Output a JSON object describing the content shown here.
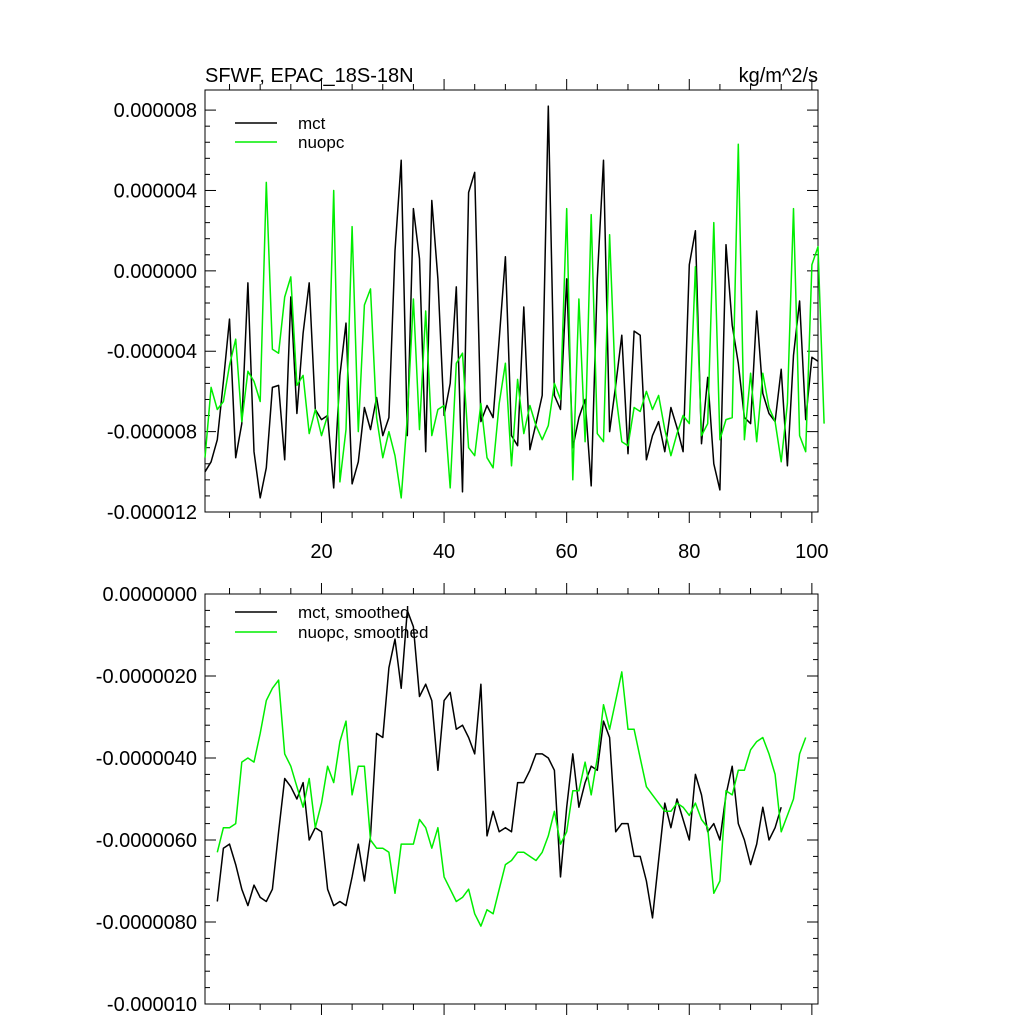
{
  "chart_data": [
    {
      "type": "line",
      "title": "SFWF, EPAC_18S-18N",
      "units": "kg/m^2/s",
      "xlim": [
        1,
        101
      ],
      "ylim": [
        -1.2e-05,
        9e-06
      ],
      "x_tick_values": [
        20,
        40,
        60,
        80,
        100
      ],
      "x_tick_labels": [
        "20",
        "40",
        "60",
        "80",
        "100"
      ],
      "y_tick_values": [
        -1.2e-05,
        -8e-06,
        -4e-06,
        0.0,
        4e-06,
        8e-06
      ],
      "y_tick_labels": [
        "-0.000012",
        "-0.000008",
        "-0.000004",
        "0.000000",
        "0.000004",
        "0.000008"
      ],
      "x_start": 1,
      "series": [
        {
          "name": "mct",
          "color": "#000000",
          "values": [
            -1e-05,
            -9.5e-06,
            -8.4e-06,
            -5.5e-06,
            -2.4e-06,
            -9.3e-06,
            -7.6e-06,
            -6e-07,
            -9e-06,
            -1.13e-05,
            -9.8e-06,
            -5.8e-06,
            -5.7e-06,
            -9.4e-06,
            -1.3e-06,
            -7.1e-06,
            -3.1e-06,
            -6e-07,
            -6.9e-06,
            -7.4e-06,
            -7.2e-06,
            -1.08e-05,
            -5.2e-06,
            -2.6e-06,
            -1.06e-05,
            -9.5e-06,
            -6.8e-06,
            -7.9e-06,
            -6.3e-06,
            -8.2e-06,
            -7.3e-06,
            1e-06,
            5.5e-06,
            -8.2e-06,
            3.1e-06,
            6e-07,
            -9e-06,
            3.5e-06,
            -4e-07,
            -7.2e-06,
            -5.6e-06,
            -8e-07,
            -1.1e-05,
            3.9e-06,
            4.9e-06,
            -7.5e-06,
            -6.7e-06,
            -7.3e-06,
            -3.4e-06,
            7e-07,
            -8.2e-06,
            -8.7e-06,
            -1.8e-06,
            -8.9e-06,
            -7.6e-06,
            -6.2e-06,
            8.2e-06,
            -6.2e-06,
            -6.9e-06,
            -4e-07,
            -8.8e-06,
            -7.3e-06,
            -6.4e-06,
            -1.07e-05,
            -4e-07,
            5.5e-06,
            -8e-06,
            -5.7e-06,
            -3.2e-06,
            -9.1e-06,
            -3e-06,
            -3.2e-06,
            -9.4e-06,
            -8.2e-06,
            -7.5e-06,
            -9e-06,
            -6.8e-06,
            -7.8e-06,
            -9e-06,
            3e-07,
            2e-06,
            -8.6e-06,
            -5.3e-06,
            -9.6e-06,
            -1.09e-05,
            1.3e-06,
            -2.7e-06,
            -4.6e-06,
            -7.3e-06,
            -7.6e-06,
            -2e-06,
            -6.1e-06,
            -7.1e-06,
            -7.5e-06,
            -4.9e-06,
            -9.7e-06,
            -4.2e-06,
            -1.5e-06,
            -7.4e-06,
            -4.3e-06,
            -4.5e-06
          ]
        },
        {
          "name": "nuopc",
          "color": "#00ee00",
          "values": [
            -9.3e-06,
            -5.8e-06,
            -6.9e-06,
            -6.5e-06,
            -4.7e-06,
            -3.4e-06,
            -7.5e-06,
            -5e-06,
            -5.5e-06,
            -6.5e-06,
            4.4e-06,
            -3.9e-06,
            -4.1e-06,
            -1.3e-06,
            -3e-07,
            -5.7e-06,
            -5.2e-06,
            -8.1e-06,
            -6.9e-06,
            -8.2e-06,
            -7.2e-06,
            4e-06,
            -1.05e-05,
            -7.9e-06,
            2.2e-06,
            -8e-06,
            -1.7e-06,
            -9e-07,
            -7.3e-06,
            -9.3e-06,
            -8e-06,
            -9.2e-06,
            -1.13e-05,
            -7.3e-06,
            -1.4e-06,
            -7.9e-06,
            -2e-06,
            -8.2e-06,
            -6.9e-06,
            -6.7e-06,
            -1.08e-05,
            -4.6e-06,
            -4.1e-06,
            -8.8e-06,
            -9.2e-06,
            -6.6e-06,
            -9.3e-06,
            -9.8e-06,
            -6.6e-06,
            -4.6e-06,
            -9.7e-06,
            -5.4e-06,
            -8.1e-06,
            -6.7e-06,
            -7.7e-06,
            -8.4e-06,
            -7.7e-06,
            -5.6e-06,
            -6.4e-06,
            3.1e-06,
            -1.04e-05,
            -1.4e-06,
            -8.5e-06,
            2.8e-06,
            -8.1e-06,
            -8.5e-06,
            1.8e-06,
            -6.1e-06,
            -8.5e-06,
            -8.7e-06,
            -6.8e-06,
            -7e-06,
            -6e-06,
            -6.9e-06,
            -6.2e-06,
            -7.9e-06,
            -9.2e-06,
            -8.1e-06,
            -7.2e-06,
            -7.6e-06,
            2e-07,
            -8.2e-06,
            -7.6e-06,
            2.4e-06,
            -8.4e-06,
            -7.4e-06,
            -7.3e-06,
            6.3e-06,
            -8.4e-06,
            -5.1e-06,
            -8.5e-06,
            -5.1e-06,
            -6.8e-06,
            -7.5e-06,
            -9.5e-06,
            -6.6e-06,
            3.1e-06,
            -8.2e-06,
            -9e-06,
            3e-07,
            1.2e-06,
            -7.6e-06
          ]
        }
      ]
    },
    {
      "type": "line",
      "title": "",
      "units": "",
      "xlim": [
        1,
        101
      ],
      "ylim": [
        -1e-05,
        0.0
      ],
      "x_tick_values": [
        20,
        40,
        60,
        80,
        100
      ],
      "x_tick_labels": [
        "",
        "",
        "",
        "",
        ""
      ],
      "y_tick_values": [
        -1e-05,
        -8e-06,
        -6e-06,
        -4e-06,
        -2e-06,
        0.0
      ],
      "y_tick_labels": [
        "-0.000010",
        "-0.0000080",
        "-0.0000060",
        "-0.0000040",
        "-0.0000020",
        "0.0000000"
      ],
      "x_start": 3,
      "series": [
        {
          "name": "mct, smoothed",
          "color": "#000000",
          "values": [
            -7.5e-06,
            -6.2e-06,
            -6.1e-06,
            -6.6e-06,
            -7.2e-06,
            -7.6e-06,
            -7.1e-06,
            -7.4e-06,
            -7.5e-06,
            -7.2e-06,
            -5.8e-06,
            -4.5e-06,
            -4.7e-06,
            -5e-06,
            -4.6e-06,
            -6e-06,
            -5.7e-06,
            -5.8e-06,
            -7.2e-06,
            -7.6e-06,
            -7.5e-06,
            -7.6e-06,
            -6.9e-06,
            -6.1e-06,
            -7e-06,
            -5.9e-06,
            -3.4e-06,
            -3.5e-06,
            -1.8e-06,
            -1.1e-06,
            -2.3e-06,
            -4e-07,
            -8e-07,
            -2.5e-06,
            -2.2e-06,
            -2.6e-06,
            -4.3e-06,
            -2.6e-06,
            -2.4e-06,
            -3.3e-06,
            -3.2e-06,
            -3.5e-06,
            -3.9e-06,
            -2.2e-06,
            -5.9e-06,
            -5.3e-06,
            -5.8e-06,
            -5.7e-06,
            -5.8e-06,
            -4.6e-06,
            -4.6e-06,
            -4.3e-06,
            -3.9e-06,
            -3.9e-06,
            -4e-06,
            -4.3e-06,
            -6.9e-06,
            -5.2e-06,
            -3.9e-06,
            -5.2e-06,
            -4.6e-06,
            -4.2e-06,
            -4.3e-06,
            -3.1e-06,
            -3.5e-06,
            -5.8e-06,
            -5.6e-06,
            -5.6e-06,
            -6.4e-06,
            -6.4e-06,
            -7e-06,
            -7.9e-06,
            -6.5e-06,
            -5.1e-06,
            -5.7e-06,
            -5e-06,
            -5.5e-06,
            -6e-06,
            -4.4e-06,
            -4.9e-06,
            -5.8e-06,
            -5.6e-06,
            -6e-06,
            -4.9e-06,
            -4.2e-06,
            -5.6e-06,
            -6e-06,
            -6.6e-06,
            -6.1e-06,
            -5.2e-06,
            -6e-06,
            -5.7e-06,
            -5.2e-06
          ]
        },
        {
          "name": "nuopc, smoothed",
          "color": "#00ee00",
          "values": [
            -6.3e-06,
            -5.7e-06,
            -5.7e-06,
            -5.6e-06,
            -4.1e-06,
            -4e-06,
            -4.1e-06,
            -3.4e-06,
            -2.6e-06,
            -2.3e-06,
            -2.1e-06,
            -3.9e-06,
            -4.2e-06,
            -4.7e-06,
            -5.2e-06,
            -4.5e-06,
            -5.7e-06,
            -5.1e-06,
            -4.2e-06,
            -4.6e-06,
            -3.6e-06,
            -3.1e-06,
            -4.9e-06,
            -4.2e-06,
            -4.2e-06,
            -6e-06,
            -6.2e-06,
            -6.2e-06,
            -6.3e-06,
            -7.3e-06,
            -6.1e-06,
            -6.1e-06,
            -6.1e-06,
            -5.5e-06,
            -5.7e-06,
            -6.2e-06,
            -5.7e-06,
            -6.9e-06,
            -7.2e-06,
            -7.5e-06,
            -7.4e-06,
            -7.2e-06,
            -7.8e-06,
            -8.1e-06,
            -7.7e-06,
            -7.8e-06,
            -7.2e-06,
            -6.6e-06,
            -6.5e-06,
            -6.3e-06,
            -6.3e-06,
            -6.4e-06,
            -6.5e-06,
            -6.3e-06,
            -5.9e-06,
            -5.3e-06,
            -6.1e-06,
            -5.8e-06,
            -4.8e-06,
            -4.8e-06,
            -4.1e-06,
            -4.9e-06,
            -4e-06,
            -2.7e-06,
            -3.3e-06,
            -2.6e-06,
            -1.9e-06,
            -3.3e-06,
            -3.3e-06,
            -4e-06,
            -4.7e-06,
            -4.9e-06,
            -5.1e-06,
            -5.3e-06,
            -5.3e-06,
            -5.1e-06,
            -5.2e-06,
            -5.4e-06,
            -5.1e-06,
            -5.5e-06,
            -5.7e-06,
            -7.3e-06,
            -7e-06,
            -4.8e-06,
            -4.9e-06,
            -4.3e-06,
            -4.3e-06,
            -3.8e-06,
            -3.6e-06,
            -3.5e-06,
            -3.9e-06,
            -4.4e-06,
            -5.8e-06,
            -5.4e-06,
            -5e-06,
            -3.9e-06,
            -3.5e-06
          ]
        }
      ]
    }
  ]
}
